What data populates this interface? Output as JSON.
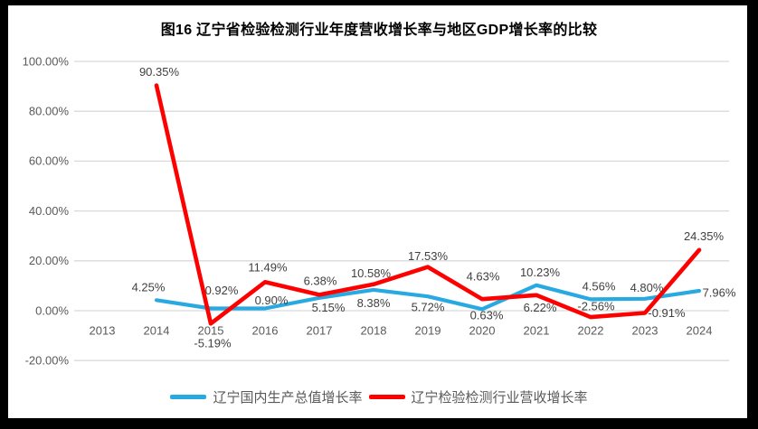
{
  "page": {
    "frame_color": "#000000",
    "background": "#ffffff"
  },
  "chart_data": {
    "type": "line",
    "title": "图16 辽宁省检验检测行业年度营收增长率与地区GDP增长率的比较",
    "categories": [
      "2013",
      "2014",
      "2015",
      "2016",
      "2017",
      "2018",
      "2019",
      "2020",
      "2021",
      "2022",
      "2023",
      "2024"
    ],
    "y_axis": {
      "unit": "percent",
      "range": [
        -20,
        100
      ],
      "ticks": [
        {
          "label": "100.00%",
          "value": 100
        },
        {
          "label": "80.00%",
          "value": 80
        },
        {
          "label": "60.00%",
          "value": 60
        },
        {
          "label": "40.00%",
          "value": 40
        },
        {
          "label": "20.00%",
          "value": 20
        },
        {
          "label": "0.00%",
          "value": 0
        },
        {
          "label": "-20.00%",
          "value": -20
        }
      ]
    },
    "grid": true,
    "legend_position": "bottom",
    "series": [
      {
        "id": "gdp-growth-line",
        "name": "辽宁国内生产总值增长率",
        "color": "#29A9E1",
        "values": [
          null,
          4.25,
          0.92,
          0.9,
          5.15,
          8.38,
          5.72,
          0.63,
          10.23,
          4.56,
          4.8,
          7.96
        ],
        "labels": [
          null,
          "4.25%",
          "0.92%",
          "0.90%",
          "5.15%",
          "8.38%",
          "5.72%",
          "0.63%",
          "10.23%",
          "4.56%",
          "4.80%",
          "7.96%"
        ]
      },
      {
        "id": "revenue-growth-line",
        "name": "辽宁检验检测行业营收增长率",
        "color": "#FF0000",
        "values": [
          null,
          90.35,
          -5.19,
          11.49,
          6.38,
          10.58,
          17.53,
          4.63,
          6.22,
          -2.56,
          -0.91,
          24.35
        ],
        "labels": [
          null,
          "90.35%",
          "-5.19%",
          "11.49%",
          "6.38%",
          "10.58%",
          "17.53%",
          "4.63%",
          "6.22%",
          "-2.56%",
          "-0.91%",
          "24.35%"
        ]
      }
    ],
    "text_colors": {
      "axis": "#595959",
      "data_label": "#404040",
      "title": "#000000",
      "gridline": "#D9D9D9"
    }
  }
}
